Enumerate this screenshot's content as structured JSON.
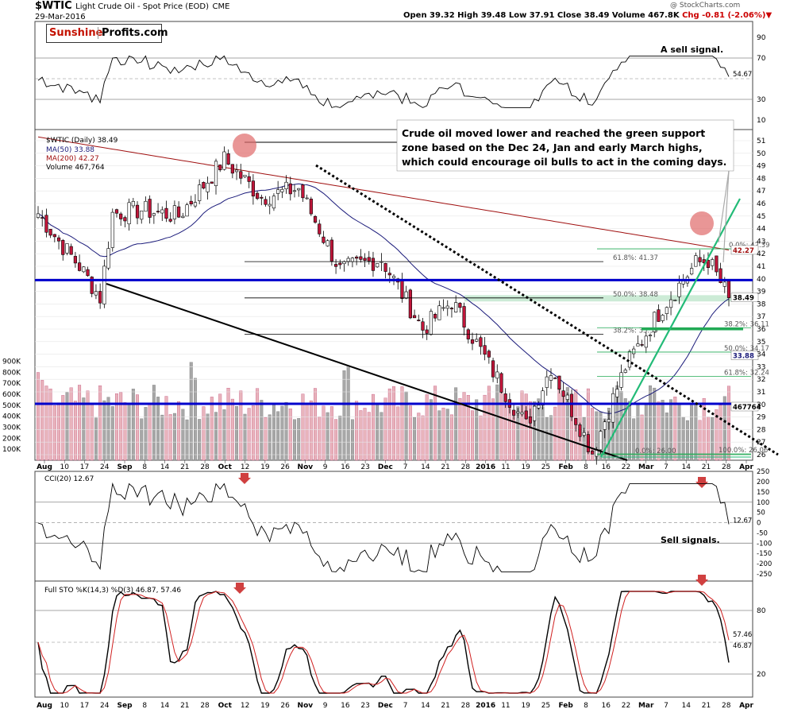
{
  "header": {
    "symbol": "$WTIC",
    "name": "Light Crude Oil - Spot Price (EOD)",
    "exchange": "CME",
    "date": "29-Mar-2016",
    "open": "Open 39.32",
    "high": "High 39.48",
    "low": "Low 37.91",
    "close": "Close 38.49",
    "volume": "Volume 467.8K",
    "change": "Chg -0.81 (-2.06%)",
    "credit": "@ StockCharts.com"
  },
  "logo": {
    "part1": "Sunshine",
    "part2": "Profits.com"
  },
  "colors": {
    "up": "#ffffff",
    "down": "#c0163a",
    "ma50": "#1a1a7a",
    "ma200": "#a01010",
    "blue_line": "#0000cc",
    "green": "#22aa55",
    "vol_up": "#a8a8a8",
    "vol_down": "#e8b4bc"
  },
  "rsi_panel": {
    "annotation": "A sell signal.",
    "ticks": [
      "90",
      "70",
      "30",
      "10"
    ],
    "current": "54.67"
  },
  "main_panel": {
    "legend_title": "$WTIC (Daily) 38.49",
    "legend_ma50": "MA(50) 33.88",
    "legend_ma200": "MA(200) 42.27",
    "legend_volume": "Volume 467,764",
    "annotation_line1": "Crude oil moved lower and reached the green support",
    "annotation_line2": "zone based on the Dec 24, Jan and early March highs,",
    "annotation_line3": "which could encourage oil bulls to act in the coming days.",
    "price_ticks": [
      "51",
      "50",
      "49",
      "48",
      "47",
      "46",
      "45",
      "44",
      "43",
      "42",
      "41",
      "40",
      "39",
      "38",
      "37",
      "36",
      "35",
      "34",
      "33",
      "32",
      "31",
      "30",
      "29",
      "28",
      "27",
      "26"
    ],
    "volume_ticks": [
      "900K",
      "800K",
      "700K",
      "600K",
      "500K",
      "400K",
      "300K",
      "200K",
      "100K"
    ],
    "badges": {
      "ma200": "42.27",
      "close": "38.49",
      "ma50": "33.88",
      "volume": "467764"
    },
    "fib_left": [
      {
        "label": "61.8%: 41.37",
        "value": 41.37
      },
      {
        "label": "50.0%: 38.48",
        "value": 38.48
      },
      {
        "label": "38.2%: 35.59",
        "value": 35.59
      }
    ],
    "fib_right": [
      {
        "label": "0.0%: 42.39",
        "value": 42.39
      },
      {
        "label": "38.2%: 36.11",
        "value": 36.11
      },
      {
        "label": "50.0%: 34.17",
        "value": 34.17
      },
      {
        "label": "61.8%: 32.24",
        "value": 32.24
      },
      {
        "label": "0.0%: 26.00",
        "value": 26.0
      },
      {
        "label": "100.0%: 26.06",
        "value": 26.06
      }
    ],
    "horizontal_support": [
      39.9,
      30.05
    ],
    "green_zone": [
      38.2,
      38.7
    ]
  },
  "cci_panel": {
    "legend": "CCI(20) 12.67",
    "annotation": "Sell signals.",
    "ticks": [
      "250",
      "200",
      "150",
      "100",
      "50",
      "0",
      "-50",
      "-100",
      "-150",
      "-200",
      "-250"
    ],
    "current": "12.67"
  },
  "sto_panel": {
    "legend": "Full STO %K(14,3) %D(3) 46.87, 57.46",
    "ticks": [
      "80",
      "20"
    ],
    "current_k": "46.87",
    "current_d": "57.46"
  },
  "x_axis": [
    "Aug",
    "10",
    "17",
    "24",
    "Sep",
    "8",
    "14",
    "21",
    "28",
    "Oct",
    "12",
    "19",
    "26",
    "Nov",
    "9",
    "16",
    "23",
    "Dec",
    "7",
    "14",
    "21",
    "28",
    "2016",
    "11",
    "19",
    "25",
    "Feb",
    "8",
    "16",
    "22",
    "Mar",
    "7",
    "14",
    "21",
    "28",
    "Apr"
  ],
  "chart_data": {
    "type": "candlestick",
    "title": "$WTIC Light Crude Oil - Spot Price (EOD)",
    "period": "Aug 2015 - Mar 29 2016",
    "last_close": 38.49,
    "ylim": [
      25.5,
      52
    ],
    "close_path": [
      {
        "date": "2015-08-03",
        "close": 45.2
      },
      {
        "date": "2015-08-10",
        "close": 43.0
      },
      {
        "date": "2015-08-17",
        "close": 41.0
      },
      {
        "date": "2015-08-24",
        "close": 38.5
      },
      {
        "date": "2015-08-28",
        "close": 45.2
      },
      {
        "date": "2015-09-08",
        "close": 45.5
      },
      {
        "date": "2015-09-21",
        "close": 45.0
      },
      {
        "date": "2015-10-07",
        "close": 49.5
      },
      {
        "date": "2015-10-19",
        "close": 46.5
      },
      {
        "date": "2015-11-02",
        "close": 47.2
      },
      {
        "date": "2015-11-16",
        "close": 40.7
      },
      {
        "date": "2015-11-30",
        "close": 41.6
      },
      {
        "date": "2015-12-14",
        "close": 36.0
      },
      {
        "date": "2015-12-24",
        "close": 38.2
      },
      {
        "date": "2016-01-11",
        "close": 31.5
      },
      {
        "date": "2016-01-20",
        "close": 28.3
      },
      {
        "date": "2016-01-28",
        "close": 33.0
      },
      {
        "date": "2016-02-11",
        "close": 26.2
      },
      {
        "date": "2016-02-22",
        "close": 33.0
      },
      {
        "date": "2016-03-07",
        "close": 37.8
      },
      {
        "date": "2016-03-18",
        "close": 41.2
      },
      {
        "date": "2016-03-22",
        "close": 41.5
      },
      {
        "date": "2016-03-29",
        "close": 38.49
      }
    ]
  }
}
